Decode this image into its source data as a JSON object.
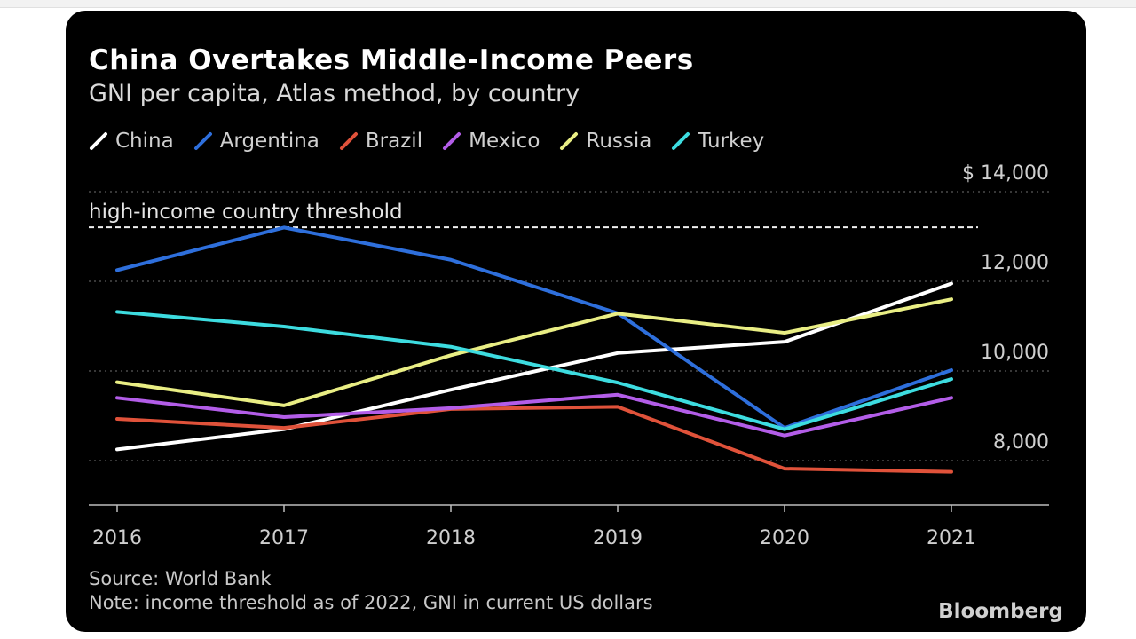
{
  "chart_data": {
    "type": "line",
    "title": "China Overtakes Middle-Income Peers",
    "subtitle": "GNI per capita, Atlas method, by country",
    "categories": [
      "2016",
      "2017",
      "2018",
      "2019",
      "2020",
      "2021"
    ],
    "series": [
      {
        "name": "China",
        "color": "#ffffff",
        "values": [
          8250,
          8700,
          9580,
          10400,
          10650,
          11950
        ]
      },
      {
        "name": "Argentina",
        "color": "#2e6fdc",
        "values": [
          12250,
          13200,
          12480,
          11290,
          8730,
          10020
        ]
      },
      {
        "name": "Brazil",
        "color": "#e0523a",
        "values": [
          8930,
          8730,
          9150,
          9200,
          7820,
          7750
        ]
      },
      {
        "name": "Mexico",
        "color": "#b35de8",
        "values": [
          9400,
          8970,
          9170,
          9470,
          8560,
          9400
        ]
      },
      {
        "name": "Russia",
        "color": "#e9ee84",
        "values": [
          9750,
          9230,
          10350,
          11280,
          10850,
          11600
        ]
      },
      {
        "name": "Turkey",
        "color": "#3ddce0",
        "values": [
          11320,
          10990,
          10540,
          9740,
          8700,
          9820
        ]
      }
    ],
    "threshold": {
      "label": "high-income country threshold",
      "value": 13205
    },
    "y_ticks": [
      {
        "value": 14000,
        "label": "$ 14,000"
      },
      {
        "value": 12000,
        "label": "12,000"
      },
      {
        "value": 10000,
        "label": "10,000"
      },
      {
        "value": 8000,
        "label": "8,000"
      }
    ],
    "ylim": [
      7000,
      14000
    ],
    "xlabel": "",
    "ylabel": "",
    "grid": true
  },
  "footer": {
    "source": "Source: World Bank",
    "note": "Note: income threshold as of 2022, GNI in current US dollars",
    "brand": "Bloomberg"
  }
}
